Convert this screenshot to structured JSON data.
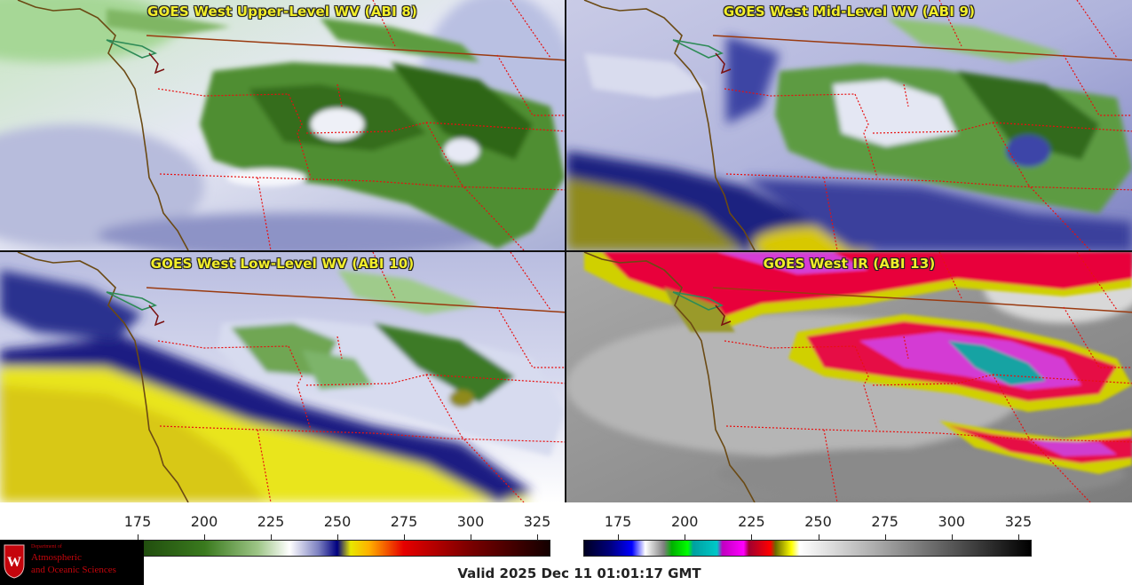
{
  "panels": [
    {
      "id": "upper",
      "title": "GOES West Upper-Level WV (ABI 8)"
    },
    {
      "id": "mid",
      "title": "GOES West Mid-Level WV (ABI 9)"
    },
    {
      "id": "low",
      "title": "GOES West Low-Level WV (ABI 10)"
    },
    {
      "id": "ir",
      "title": "GOES West IR (ABI 13)"
    }
  ],
  "colorbar_wv": {
    "ticks": [
      "175",
      "200",
      "225",
      "250",
      "275",
      "300",
      "325"
    ],
    "range": [
      162,
      330
    ],
    "stops": [
      {
        "v": 162,
        "c": "#0b1d05"
      },
      {
        "v": 175,
        "c": "#1f4a0d"
      },
      {
        "v": 200,
        "c": "#3a7a1e"
      },
      {
        "v": 220,
        "c": "#9dc586"
      },
      {
        "v": 232,
        "c": "#ffffff"
      },
      {
        "v": 243,
        "c": "#7b7fc0"
      },
      {
        "v": 250,
        "c": "#000080"
      },
      {
        "v": 255,
        "c": "#e8e800"
      },
      {
        "v": 262,
        "c": "#ffb000"
      },
      {
        "v": 275,
        "c": "#e60000"
      },
      {
        "v": 300,
        "c": "#7a0000"
      },
      {
        "v": 330,
        "c": "#140000"
      }
    ]
  },
  "colorbar_ir": {
    "ticks": [
      "175",
      "200",
      "225",
      "250",
      "275",
      "300",
      "325"
    ],
    "range": [
      162,
      330
    ],
    "stops": [
      {
        "v": 162,
        "c": "#000020"
      },
      {
        "v": 172,
        "c": "#000080"
      },
      {
        "v": 180,
        "c": "#0000ff"
      },
      {
        "v": 185,
        "c": "#ffffff"
      },
      {
        "v": 192,
        "c": "#7f7f7f"
      },
      {
        "v": 195,
        "c": "#00b000"
      },
      {
        "v": 201,
        "c": "#00ff00"
      },
      {
        "v": 203,
        "c": "#00a0a0"
      },
      {
        "v": 212,
        "c": "#00c8c8"
      },
      {
        "v": 214,
        "c": "#c000c0"
      },
      {
        "v": 222,
        "c": "#ff00ff"
      },
      {
        "v": 224,
        "c": "#a00030"
      },
      {
        "v": 232,
        "c": "#ff0000"
      },
      {
        "v": 234,
        "c": "#6b6b00"
      },
      {
        "v": 240,
        "c": "#ffff00"
      },
      {
        "v": 243,
        "c": "#ffffff"
      },
      {
        "v": 330,
        "c": "#000000"
      }
    ]
  },
  "logo": {
    "dept": "Department of",
    "line1": "Atmospheric",
    "line2": "and Oceanic Sciences"
  },
  "valid_time": "Valid 2025 Dec 11 01:01:17 GMT",
  "colors": {
    "title": "#f2ee2a",
    "coastline": "#7a5a1a",
    "state_border": "#ff0000",
    "country_border": "#a02000"
  }
}
